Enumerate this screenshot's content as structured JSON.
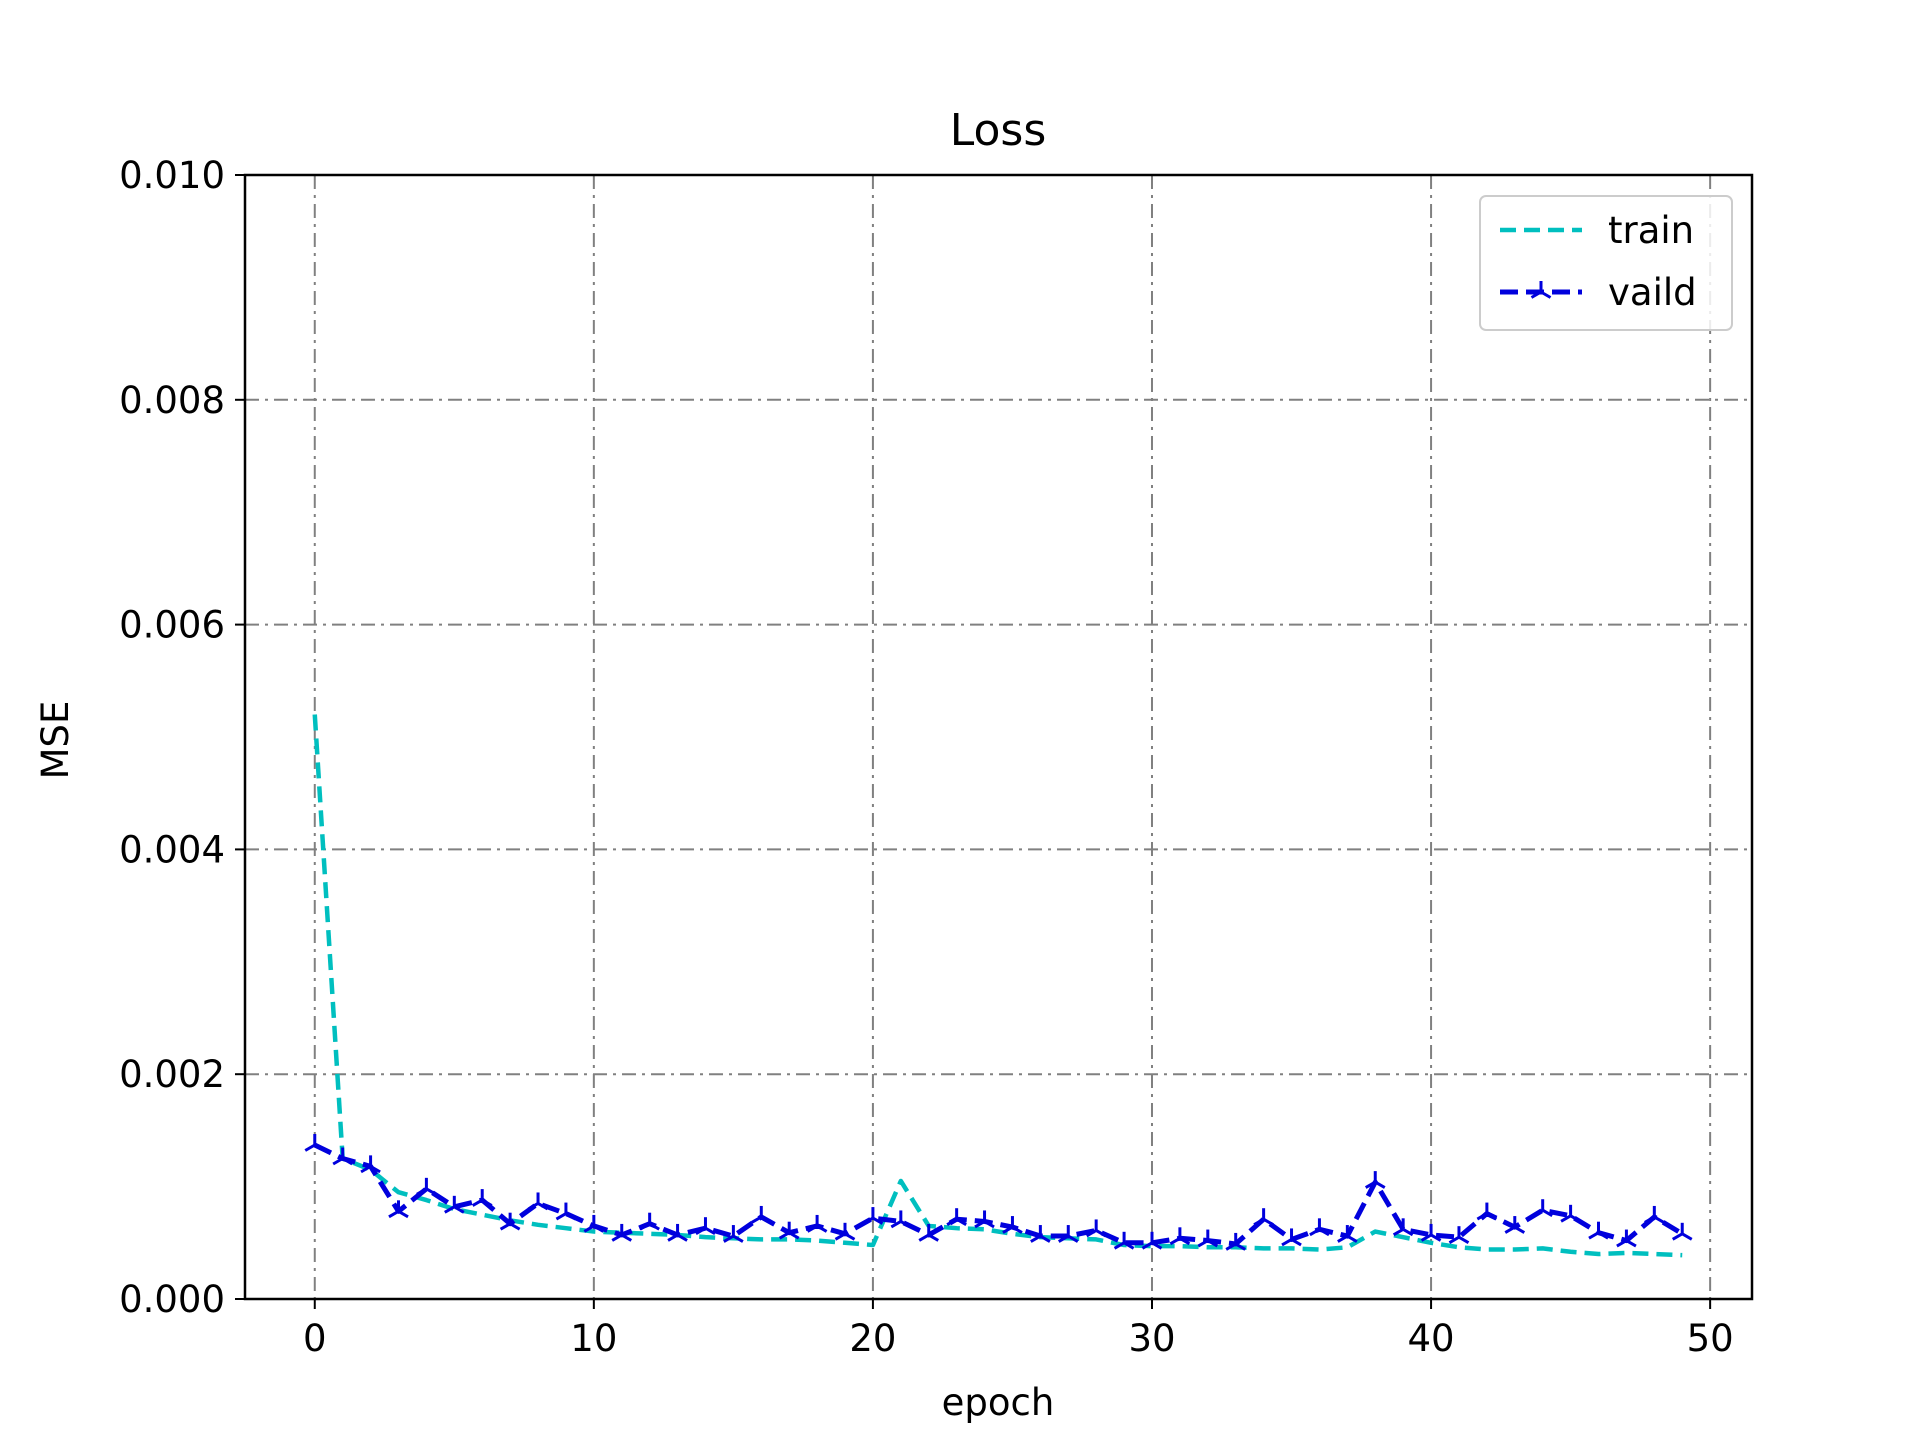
{
  "colors": {
    "train": "#00bfbf",
    "vaild": "#0000dd",
    "grid": "#808080",
    "axes": "#000000"
  },
  "chart_data": {
    "type": "line",
    "title": "Loss",
    "xlabel": "epoch",
    "ylabel": "MSE",
    "xlim": [
      -2.5,
      51.5
    ],
    "ylim": [
      0,
      0.01
    ],
    "xticks": [
      0,
      10,
      20,
      30,
      40,
      50
    ],
    "xtick_labels": [
      "0",
      "10",
      "20",
      "30",
      "40",
      "50"
    ],
    "yticks": [
      0,
      0.002,
      0.004,
      0.006,
      0.008,
      0.01
    ],
    "ytick_labels": [
      "0.000",
      "0.002",
      "0.004",
      "0.006",
      "0.008",
      "0.010"
    ],
    "grid": true,
    "grid_style": "dash-dot",
    "legend_position": "top-right",
    "x": [
      0,
      1,
      2,
      3,
      4,
      5,
      6,
      7,
      8,
      9,
      10,
      11,
      12,
      13,
      14,
      15,
      16,
      17,
      18,
      19,
      20,
      21,
      22,
      23,
      24,
      25,
      26,
      27,
      28,
      29,
      30,
      31,
      32,
      33,
      34,
      35,
      36,
      37,
      38,
      39,
      40,
      41,
      42,
      43,
      44,
      45,
      46,
      47,
      48,
      49
    ],
    "series": [
      {
        "name": "train",
        "line_style": "dashed",
        "marker": "none",
        "values": [
          0.0052,
          0.00125,
          0.00115,
          0.00095,
          0.00088,
          0.0008,
          0.00075,
          0.0007,
          0.00066,
          0.00063,
          0.0006,
          0.00059,
          0.00058,
          0.00057,
          0.00055,
          0.00054,
          0.00053,
          0.00053,
          0.00052,
          0.0005,
          0.00048,
          0.00105,
          0.00065,
          0.00063,
          0.00062,
          0.00058,
          0.00055,
          0.00054,
          0.00053,
          0.00048,
          0.00047,
          0.00047,
          0.00046,
          0.00046,
          0.00045,
          0.00045,
          0.00044,
          0.00046,
          0.0006,
          0.00055,
          0.0005,
          0.00046,
          0.00044,
          0.00044,
          0.00045,
          0.00042,
          0.0004,
          0.00041,
          0.0004,
          0.00039
        ]
      },
      {
        "name": "vaild",
        "line_style": "dashed",
        "marker": "tri-star",
        "values": [
          0.00137,
          0.00125,
          0.00118,
          0.00078,
          0.00098,
          0.00082,
          0.00088,
          0.00067,
          0.00085,
          0.00076,
          0.00065,
          0.00057,
          0.00067,
          0.00057,
          0.00063,
          0.00056,
          0.00073,
          0.00059,
          0.00065,
          0.00058,
          0.00072,
          0.00069,
          0.00057,
          0.00071,
          0.00069,
          0.00064,
          0.00056,
          0.00056,
          0.00061,
          0.0005,
          0.0005,
          0.00054,
          0.00052,
          0.00049,
          0.00071,
          0.00053,
          0.00062,
          0.00056,
          0.00104,
          0.00062,
          0.00057,
          0.00055,
          0.00076,
          0.00064,
          0.00079,
          0.00074,
          0.00059,
          0.00052,
          0.00073,
          0.00058
        ]
      }
    ]
  }
}
